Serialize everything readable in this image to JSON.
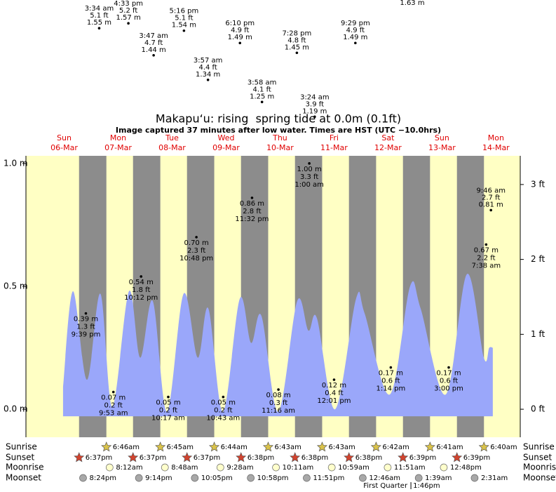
{
  "chart_data": {
    "type": "area",
    "title": "Makapu‘u: rising  spring tide at 0.0m (0.1ft)",
    "subtitle": "Image captured 37 minutes after low water. Times are HST (UTC −10.0hrs)",
    "days": [
      {
        "weekday": "Sun",
        "date": "06-Mar"
      },
      {
        "weekday": "Mon",
        "date": "07-Mar"
      },
      {
        "weekday": "Tue",
        "date": "08-Mar"
      },
      {
        "weekday": "Wed",
        "date": "09-Mar"
      },
      {
        "weekday": "Thu",
        "date": "10-Mar"
      },
      {
        "weekday": "Fri",
        "date": "11-Mar"
      },
      {
        "weekday": "Sat",
        "date": "12-Mar"
      },
      {
        "weekday": "Sun",
        "date": "13-Mar"
      },
      {
        "weekday": "Mon",
        "date": "14-Mar"
      }
    ],
    "x": [
      11.5,
      15.9,
      22.1,
      28.1,
      33.4,
      40.8,
      45.8,
      51.4,
      57.7,
      65.1,
      71.4,
      76.1,
      82.6,
      90.1,
      95.1,
      99.7,
      107.2,
      115.6,
      120.6,
      124.4,
      132.5,
      141.8,
      145.6,
      156.8,
      165.8,
      170.5,
      181.7,
      191.1,
      198.6,
      201.0,
      202.6
    ],
    "values": [
      0.09,
      0.48,
      0.12,
      0.47,
      0.01,
      0.48,
      0.21,
      0.44,
      -0.01,
      0.47,
      0.21,
      0.41,
      -0.01,
      0.45,
      0.27,
      0.38,
      -0.01,
      0.44,
      0.32,
      0.37,
      0.0,
      0.45,
      0.39,
      0.06,
      0.5,
      0.41,
      0.06,
      0.55,
      0.21,
      0.25,
      0.25
    ],
    "color": "#9aa7fa",
    "day_color": "#ffffc4",
    "night_color": "#8c8c8c",
    "xlim": [
      -5.0,
      214.8
    ],
    "ylim": [
      -0.114,
      1.031
    ],
    "yticks": [
      {
        "value": 0,
        "label": "0.0 m"
      },
      {
        "value": 0.5,
        "label": "0.5 m"
      },
      {
        "value": 1,
        "label": "1.0 m"
      }
    ],
    "y2lim": [
      -0.374,
      3.383
    ],
    "y2ticks": [
      {
        "value": 0,
        "label": "0 ft"
      },
      {
        "value": 1,
        "label": "1 ft"
      },
      {
        "value": 2,
        "label": "2 ft"
      },
      {
        "value": 3,
        "label": "3 ft"
      }
    ],
    "extremes": [
      {
        "date": "07-Mar",
        "time": "3:34 am",
        "value": 1.55,
        "value_label": "1.55 m",
        "feet_label": "5.1 ft",
        "label_position": "above"
      },
      {
        "date": "07-Mar",
        "time": "4:33 pm",
        "value": 1.57,
        "value_label": "1.57 m",
        "feet_label": "5.2 ft",
        "label_position": "above"
      },
      {
        "date": "08-Mar",
        "time": "3:47 am",
        "value": 1.44,
        "value_label": "1.44 m",
        "feet_label": "4.7 ft",
        "label_position": "above"
      },
      {
        "date": "08-Mar",
        "time": "5:16 pm",
        "value": 1.54,
        "value_label": "1.54 m",
        "feet_label": "5.1 ft",
        "label_position": "above"
      },
      {
        "date": "09-Mar",
        "time": "3:57 am",
        "value": 1.34,
        "value_label": "1.34 m",
        "feet_label": "4.4 ft",
        "label_position": "above"
      },
      {
        "date": "09-Mar",
        "time": "6:10 pm",
        "value": 1.49,
        "value_label": "1.49 m",
        "feet_label": "4.9 ft",
        "label_position": "above"
      },
      {
        "date": "10-Mar",
        "time": "3:58 am",
        "value": 1.25,
        "value_label": "1.25 m",
        "feet_label": "4.1 ft",
        "label_position": "above"
      },
      {
        "date": "10-Mar",
        "time": "7:28 pm",
        "value": 1.45,
        "value_label": "1.45 m",
        "feet_label": "4.8 ft",
        "label_position": "above"
      },
      {
        "date": "11-Mar",
        "time": "3:24 am",
        "value": 1.19,
        "value_label": "1.19 m",
        "feet_label": "3.9 ft",
        "label_position": "above"
      },
      {
        "date": "11-Mar",
        "time": "9:29 pm",
        "value": 1.49,
        "value_label": "1.49 m",
        "feet_label": "4.9 ft",
        "label_position": "above"
      },
      {
        "date": "06-Mar",
        "time": "9:39 pm",
        "value": 0.39,
        "value_label": "0.39 m",
        "feet_label": "1.3 ft",
        "label_position": "below"
      },
      {
        "date": "07-Mar",
        "time": "9:53 am",
        "value": 0.07,
        "value_label": "0.07 m",
        "feet_label": "0.2 ft",
        "label_position": "below"
      },
      {
        "date": "07-Mar",
        "time": "10:12 pm",
        "value": 0.54,
        "value_label": "0.54 m",
        "feet_label": "1.8 ft",
        "label_position": "below"
      },
      {
        "date": "08-Mar",
        "time": "10:17 am",
        "value": 0.05,
        "value_label": "0.05 m",
        "feet_label": "0.2 ft",
        "label_position": "below"
      },
      {
        "date": "08-Mar",
        "time": "10:48 pm",
        "value": 0.7,
        "value_label": "0.70 m",
        "feet_label": "2.3 ft",
        "label_position": "below"
      },
      {
        "date": "09-Mar",
        "time": "10:43 am",
        "value": 0.05,
        "value_label": "0.05 m",
        "feet_label": "0.2 ft",
        "label_position": "below"
      },
      {
        "date": "09-Mar",
        "time": "11:32 pm",
        "value": 0.86,
        "value_label": "0.86 m",
        "feet_label": "2.8 ft",
        "label_position": "below"
      },
      {
        "date": "10-Mar",
        "time": "11:16 am",
        "value": 0.08,
        "value_label": "0.08 m",
        "feet_label": "0.3 ft",
        "label_position": "below"
      },
      {
        "date": "11-Mar",
        "time": "1:00 am",
        "value": 1.0,
        "value_label": "1.00 m",
        "feet_label": "3.3 ft",
        "label_position": "below"
      },
      {
        "date": "11-Mar",
        "time": "12:01 pm",
        "value": 0.12,
        "value_label": "0.12 m",
        "feet_label": "0.4 ft",
        "label_position": "below"
      },
      {
        "date": "12-Mar",
        "time": "1:14 pm",
        "value": 0.17,
        "value_label": "0.17 m",
        "feet_label": "0.6 ft",
        "label_position": "below"
      },
      {
        "date": "13-Mar",
        "time": "3:00 pm",
        "value": 0.17,
        "value_label": "0.17 m",
        "feet_label": "0.6 ft",
        "label_position": "below"
      },
      {
        "date": "14-Mar",
        "time": "7:38 am",
        "value": 0.67,
        "value_label": "0.67 m",
        "feet_label": "2.2 ft",
        "label_position": "below"
      },
      {
        "date": "14-Mar",
        "time": "9:46 am",
        "value": 0.81,
        "value_label": "0.81 m",
        "feet_label": "2.7 ft",
        "label_position": "above"
      }
    ],
    "clipped_label": "1.63 m",
    "rows": [
      {
        "name": "Sunrise",
        "icon": "star",
        "color": "#d9c24a",
        "items": [
          {
            "date": "07-Mar",
            "time": "6:46am"
          },
          {
            "date": "08-Mar",
            "time": "6:45am"
          },
          {
            "date": "09-Mar",
            "time": "6:44am"
          },
          {
            "date": "10-Mar",
            "time": "6:43am"
          },
          {
            "date": "11-Mar",
            "time": "6:43am"
          },
          {
            "date": "12-Mar",
            "time": "6:42am"
          },
          {
            "date": "13-Mar",
            "time": "6:41am"
          },
          {
            "date": "14-Mar",
            "time": "6:40am"
          }
        ]
      },
      {
        "name": "Sunset",
        "icon": "star",
        "color": "#d2432e",
        "items": [
          {
            "date": "06-Mar",
            "time": "6:37pm"
          },
          {
            "date": "07-Mar",
            "time": "6:37pm"
          },
          {
            "date": "08-Mar",
            "time": "6:37pm"
          },
          {
            "date": "09-Mar",
            "time": "6:38pm"
          },
          {
            "date": "10-Mar",
            "time": "6:38pm"
          },
          {
            "date": "11-Mar",
            "time": "6:38pm"
          },
          {
            "date": "12-Mar",
            "time": "6:39pm"
          },
          {
            "date": "13-Mar",
            "time": "6:39pm"
          }
        ]
      },
      {
        "name": "Moonrise",
        "icon": "circle",
        "color": "#ffffcc",
        "items": [
          {
            "date": "07-Mar",
            "time": "8:12am"
          },
          {
            "date": "08-Mar",
            "time": "8:48am"
          },
          {
            "date": "09-Mar",
            "time": "9:28am"
          },
          {
            "date": "10-Mar",
            "time": "10:11am"
          },
          {
            "date": "11-Mar",
            "time": "10:59am"
          },
          {
            "date": "12-Mar",
            "time": "11:51am"
          },
          {
            "date": "13-Mar",
            "time": "12:48pm"
          }
        ]
      },
      {
        "name": "Moonset",
        "icon": "circle",
        "color": "#a8a8a8",
        "items": [
          {
            "date": "06-Mar",
            "time": "8:24pm"
          },
          {
            "date": "07-Mar",
            "time": "9:14pm"
          },
          {
            "date": "08-Mar",
            "time": "10:05pm"
          },
          {
            "date": "09-Mar",
            "time": "10:58pm"
          },
          {
            "date": "10-Mar",
            "time": "11:51pm"
          },
          {
            "date": "12-Mar",
            "time": "12:46am"
          },
          {
            "date": "13-Mar",
            "time": "1:39am"
          },
          {
            "date": "14-Mar",
            "time": "2:31am"
          }
        ]
      }
    ],
    "moon_phase": {
      "date": "12-Mar",
      "phase": "First Quarter",
      "time": "1:46pm"
    }
  }
}
